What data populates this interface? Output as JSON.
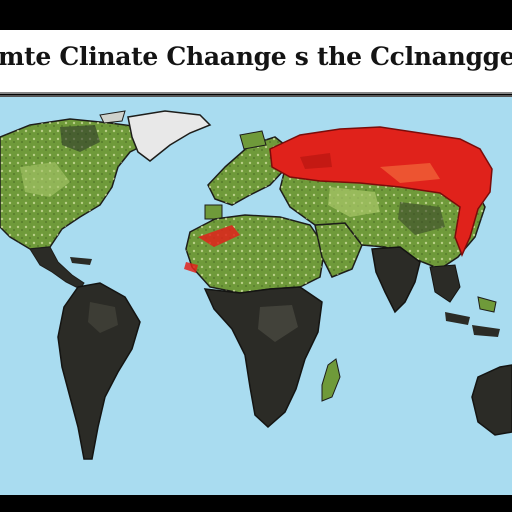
{
  "title": "mte Clinate Chaange s the Cclnangge",
  "colors": {
    "background": "#000000",
    "title_bar": "#ffffff",
    "title_text": "#141414",
    "ocean": "#a9dcf0",
    "land_dark": "#2b2b26",
    "land_green": "#6f9a3a",
    "land_light_green": "#a9c86a",
    "hot_red": "#e0221b",
    "ice": "#e8e8e8"
  },
  "map": {
    "regions": [
      {
        "name": "north-america",
        "tone": "green"
      },
      {
        "name": "greenland",
        "tone": "ice"
      },
      {
        "name": "central-america",
        "tone": "dark"
      },
      {
        "name": "south-america",
        "tone": "dark"
      },
      {
        "name": "europe",
        "tone": "green"
      },
      {
        "name": "north-africa",
        "tone": "green"
      },
      {
        "name": "sub-saharan-africa",
        "tone": "dark"
      },
      {
        "name": "madagascar",
        "tone": "green"
      },
      {
        "name": "arabia",
        "tone": "green"
      },
      {
        "name": "russia",
        "tone": "red"
      },
      {
        "name": "asia",
        "tone": "green"
      },
      {
        "name": "india",
        "tone": "dark"
      },
      {
        "name": "southeast-asia",
        "tone": "dark"
      },
      {
        "name": "australia",
        "tone": "dark"
      }
    ]
  }
}
